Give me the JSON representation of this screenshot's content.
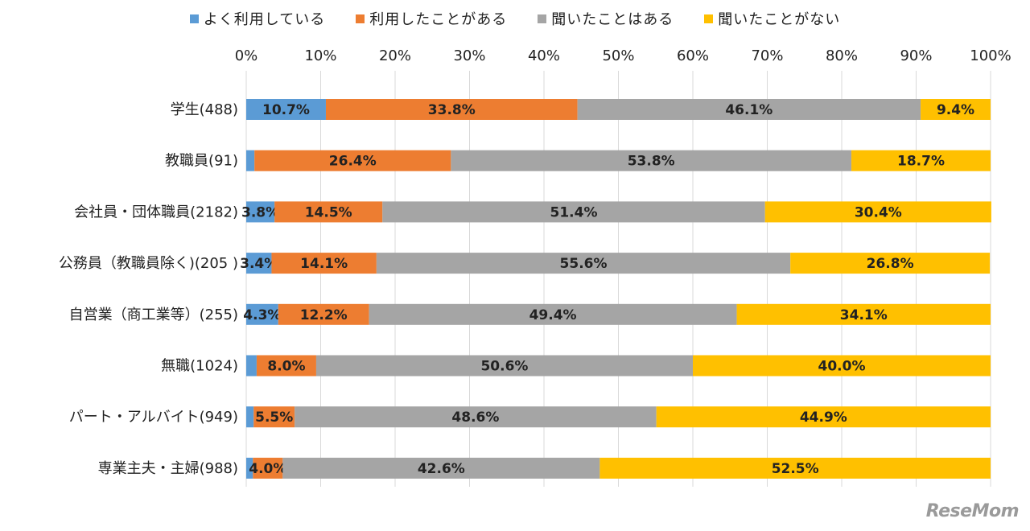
{
  "chart_data": {
    "type": "bar",
    "orientation": "horizontal",
    "stacked": "percent",
    "categories": [
      "学生(488)",
      "教職員(91)",
      "会社員・団体職員(2182)",
      "公務員（教職員除く)(205 )",
      "自営業（商工業等）(255)",
      "無職(1024)",
      "パート・アルバイト(949)",
      "専業主夫・主婦(988)"
    ],
    "series": [
      {
        "name": "よく利用している",
        "color": "#5B9BD5",
        "values": [
          10.7,
          1.1,
          3.8,
          3.4,
          4.3,
          1.4,
          1.0,
          0.9
        ],
        "labels": [
          "10.7%",
          "",
          "3.8%",
          "3.4%",
          "4.3%",
          "",
          "",
          ""
        ]
      },
      {
        "name": "利用したことがある",
        "color": "#ED7D31",
        "values": [
          33.8,
          26.4,
          14.5,
          14.1,
          12.2,
          8.0,
          5.5,
          4.0
        ],
        "labels": [
          "33.8%",
          "26.4%",
          "14.5%",
          "14.1%",
          "12.2%",
          "8.0%",
          "5.5%",
          "4.0%"
        ]
      },
      {
        "name": "聞いたことはある",
        "color": "#A5A5A5",
        "values": [
          46.1,
          53.8,
          51.4,
          55.6,
          49.4,
          50.6,
          48.6,
          42.6
        ],
        "labels": [
          "46.1%",
          "53.8%",
          "51.4%",
          "55.6%",
          "49.4%",
          "50.6%",
          "48.6%",
          "42.6%"
        ]
      },
      {
        "name": "聞いたことがない",
        "color": "#FFC000",
        "values": [
          9.4,
          18.7,
          30.4,
          26.8,
          34.1,
          40.0,
          44.9,
          52.5
        ],
        "labels": [
          "9.4%",
          "18.7%",
          "30.4%",
          "26.8%",
          "34.1%",
          "40.0%",
          "44.9%",
          "52.5%"
        ]
      }
    ],
    "xlim": [
      0,
      100
    ],
    "xticks": [
      "0%",
      "10%",
      "20%",
      "30%",
      "40%",
      "50%",
      "60%",
      "70%",
      "80%",
      "90%",
      "100%"
    ],
    "title": "",
    "xlabel": "",
    "ylabel": "",
    "grid": "vertical",
    "legend": "top"
  },
  "watermark": "ReseMom"
}
